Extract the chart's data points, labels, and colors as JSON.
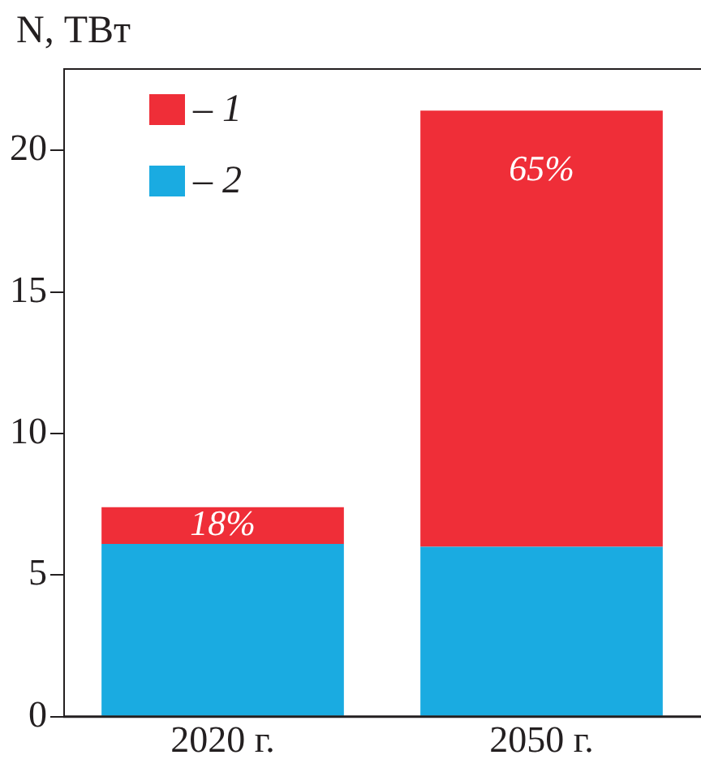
{
  "chart_data": {
    "type": "bar",
    "ylabel": "N, ТВт",
    "categories": [
      "2020 г.",
      "2050 г."
    ],
    "stacked": true,
    "series": [
      {
        "name": "– 2",
        "color": "#1aabe1",
        "values": [
          6.1,
          6.0
        ]
      },
      {
        "name": "– 1",
        "color": "#ef2e38",
        "values": [
          1.3,
          15.4
        ]
      }
    ],
    "annotations": [
      "18%",
      "65%"
    ],
    "ylim": [
      0,
      22.9
    ],
    "yticks": [
      0,
      5,
      10,
      15,
      20
    ],
    "grid": false,
    "legend": "top left"
  }
}
